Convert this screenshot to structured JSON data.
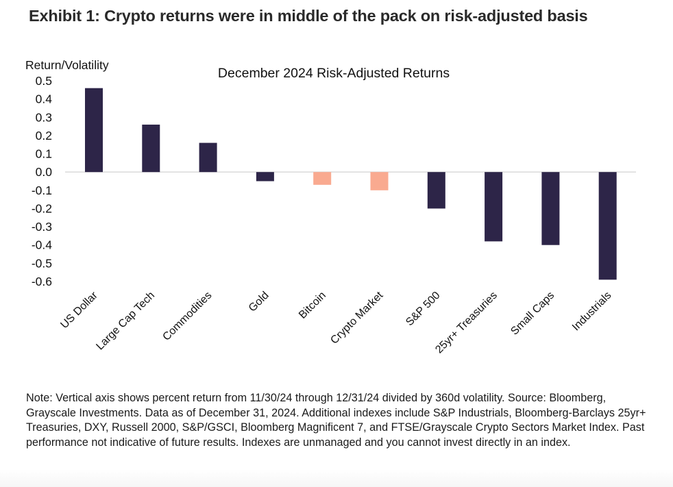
{
  "exhibit_title": "Exhibit 1: Crypto returns were in middle of the pack on risk-adjusted basis",
  "note": "Note: Vertical axis shows percent return from 11/30/24 through 12/31/24 divided by 360d volatility. Source: Bloomberg, Grayscale Investments. Data as of December 31, 2024. Additional indexes include S&P Industrials, Bloomberg-Barclays 25yr+ Treasuries, DXY, Russell 2000, S&P/GSCI, Bloomberg Magnificent 7, and FTSE/Grayscale Crypto Sectors Market Index. Past performance not indicative of future results. Indexes are unmanaged and you cannot invest directly in an index.",
  "colors": {
    "traditional": "#2d2548",
    "crypto": "#f9aa90",
    "zero_line": "#d9d9d9"
  },
  "chart_data": {
    "type": "bar",
    "title": "December 2024 Risk-Adjusted Returns",
    "xlabel": "",
    "ylabel": "Return/Volatility",
    "ylim": [
      -0.6,
      0.5
    ],
    "yticks": [
      0.5,
      0.4,
      0.3,
      0.2,
      0.1,
      0.0,
      -0.1,
      -0.2,
      -0.3,
      -0.4,
      -0.5,
      -0.6
    ],
    "ytick_labels": [
      "0.5",
      "0.4",
      "0.3",
      "0.2",
      "0.1",
      "0.0",
      "-0.1",
      "-0.2",
      "-0.3",
      "-0.4",
      "-0.5",
      "-0.6"
    ],
    "grid": false,
    "legend": "none",
    "categories": [
      "US Dollar",
      "Large Cap Tech",
      "Commodities",
      "Gold",
      "Bitcoin",
      "Crypto Market",
      "S&P 500",
      "25yr+ Treasuries",
      "Small Caps",
      "Industrials"
    ],
    "values": [
      0.46,
      0.26,
      0.16,
      -0.05,
      -0.07,
      -0.1,
      -0.2,
      -0.38,
      -0.4,
      -0.59
    ],
    "bar_groups": [
      "traditional",
      "traditional",
      "traditional",
      "traditional",
      "crypto",
      "crypto",
      "traditional",
      "traditional",
      "traditional",
      "traditional"
    ]
  }
}
